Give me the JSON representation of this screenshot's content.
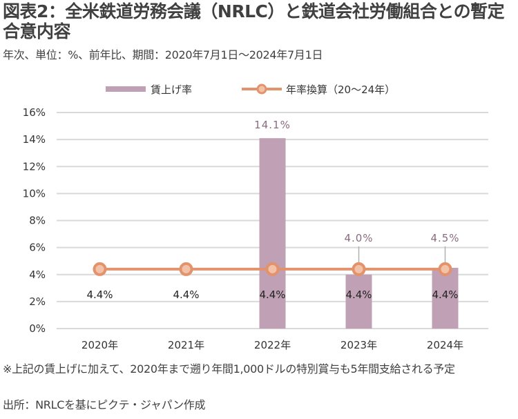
{
  "title": "図表2：全米鉄道労務会議（NRLC）と鉄道会社労働組合との暫定合意内容",
  "subtitle": "年次、単位：%、前年比、期間：2020年7月1日～2024年7月1日",
  "note": "※上記の賃上げに加えて、2020年まで遡り年間1,000ドルの特別賞与も5年間支給される予定",
  "source": "出所：NRLCを基にピクテ・ジャパン作成",
  "colors": {
    "bar": "#c0a0b4",
    "line": "#e3936b",
    "marker_fill": "#f2c2a8",
    "grid": "#d9d9d9",
    "bar_label": "#8a6a80"
  },
  "chart_data": {
    "type": "bar",
    "categories": [
      "2020年",
      "2021年",
      "2022年",
      "2023年",
      "2024年"
    ],
    "series": [
      {
        "name": "賃上げ率",
        "type": "bar",
        "values": [
          null,
          null,
          14.1,
          4.0,
          4.5
        ],
        "labels": [
          "",
          "",
          "14.1%",
          "4.0%",
          "4.5%"
        ]
      },
      {
        "name": "年率換算（20～24年）",
        "type": "line",
        "values": [
          4.4,
          4.4,
          4.4,
          4.4,
          4.4
        ],
        "labels": [
          "4.4%",
          "4.4%",
          "4.4%",
          "4.4%",
          "4.4%"
        ]
      }
    ],
    "ylim": [
      0,
      16
    ],
    "yticks": [
      0,
      2,
      4,
      6,
      8,
      10,
      12,
      14,
      16
    ],
    "ytick_labels": [
      "0%",
      "2%",
      "4%",
      "6%",
      "8%",
      "10%",
      "12%",
      "14%",
      "16%"
    ],
    "grid": true,
    "legend": "top-center",
    "xlabel": "",
    "ylabel": ""
  }
}
